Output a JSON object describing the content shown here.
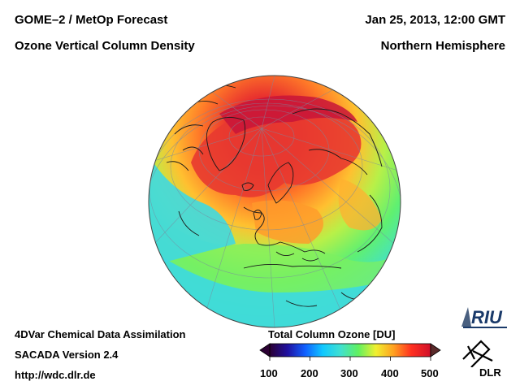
{
  "header": {
    "left_line1": "GOME–2 / MetOp Forecast",
    "left_line2": "Ozone Vertical Column Density",
    "right_line1": "Jan 25, 2013, 12:00 GMT",
    "right_line2": "Northern Hemisphere"
  },
  "footer": {
    "line1": "4DVar Chemical Data Assimilation",
    "line2": "SACADA Version 2.4",
    "line3": "http://wdc.dlr.de"
  },
  "colorbar": {
    "title": "Total Column Ozone [DU]",
    "ticks": [
      "100",
      "200",
      "300",
      "400",
      "500"
    ],
    "range_du": [
      100,
      500
    ],
    "colors": [
      "#2b0033",
      "#2010a0",
      "#1060ff",
      "#10c8ff",
      "#40e0d0",
      "#60f060",
      "#f0f030",
      "#ffa020",
      "#ff3020",
      "#d0102a"
    ]
  },
  "logos": {
    "riu": "RIU",
    "dlr": "DLR"
  },
  "map": {
    "projection": "orthographic",
    "hemisphere": "Northern Hemisphere",
    "field": "ozone total column",
    "colors": {
      "ocean_background": "#40d8e0",
      "low": "#30c8f0",
      "mid": "#70f060",
      "high_yellow": "#f0f040",
      "high_orange": "#ffa030",
      "high_red": "#f04030",
      "max": "#d01840"
    }
  }
}
